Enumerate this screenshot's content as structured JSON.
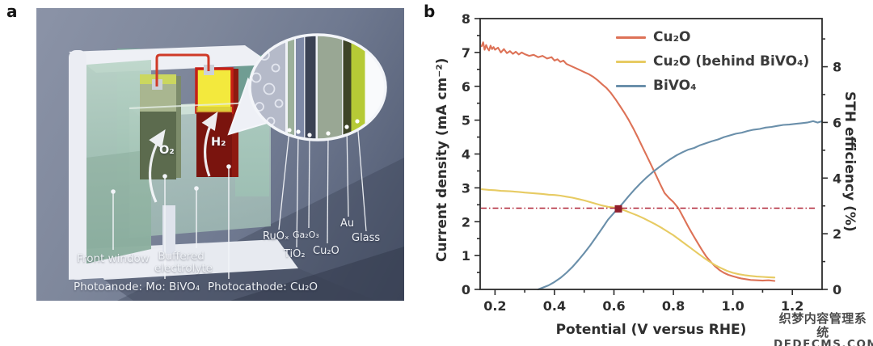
{
  "panel_a": {
    "label": "a",
    "cell_labels": {
      "front_window": "Front window",
      "buffered_line1": "Buffered",
      "buffered_line2": "electrolyte",
      "photoanode": "Photoanode: Mo: BiVO₄",
      "photocathode": "Photocathode: Cu₂O",
      "o2": "O₂",
      "h2": "H₂"
    },
    "layer_labels": [
      "RuOₓ",
      "TiO₂",
      "Ga₂O₃",
      "Cu₂O",
      "Au",
      "Glass"
    ],
    "layer_colors": [
      "#9cb09b",
      "#7e89a6",
      "#3b4254",
      "#99a794",
      "#3e4427",
      "#b6ca36"
    ]
  },
  "panel_b": {
    "label": "b"
  },
  "chart_data": {
    "type": "line",
    "xlabel": "Potential (V versus RHE)",
    "ylabel_left": "Current density (mA cm⁻²)",
    "ylabel_right": "STH efficiency (%)",
    "xlim": [
      0.15,
      1.3
    ],
    "ylim_left": [
      0,
      8
    ],
    "ylim_right": [
      0,
      9.73
    ],
    "x_major_ticks": [
      0.2,
      0.4,
      0.6,
      0.8,
      1.0,
      1.2
    ],
    "x_minor_ticks": [
      0.3,
      0.5,
      0.7,
      0.9,
      1.1
    ],
    "y_left_major_ticks": [
      0,
      1,
      2,
      3,
      4,
      5,
      6,
      7,
      8
    ],
    "y_left_minor_ticks": [
      0.5,
      1.5,
      2.5,
      3.5,
      4.5,
      5.5,
      6.5,
      7.5
    ],
    "y_right_major_ticks": [
      0,
      2,
      4,
      6,
      8
    ],
    "y_right_minor_ticks": [
      1,
      3,
      5,
      7,
      9
    ],
    "grid": false,
    "legend_position": "top-center-inside",
    "frame_color": "#2b2b2b",
    "series": [
      {
        "name": "Cu₂O",
        "color": "#dd7257",
        "points": [
          [
            0.155,
            7.18
          ],
          [
            0.16,
            7.3
          ],
          [
            0.165,
            7.08
          ],
          [
            0.17,
            7.22
          ],
          [
            0.175,
            7.12
          ],
          [
            0.18,
            7.06
          ],
          [
            0.185,
            7.2
          ],
          [
            0.19,
            7.1
          ],
          [
            0.195,
            7.16
          ],
          [
            0.2,
            7.08
          ],
          [
            0.21,
            7.14
          ],
          [
            0.22,
            7.0
          ],
          [
            0.23,
            7.1
          ],
          [
            0.24,
            6.98
          ],
          [
            0.25,
            7.04
          ],
          [
            0.26,
            6.96
          ],
          [
            0.27,
            7.02
          ],
          [
            0.28,
            6.94
          ],
          [
            0.29,
            7.0
          ],
          [
            0.3,
            6.95
          ],
          [
            0.315,
            6.9
          ],
          [
            0.33,
            6.93
          ],
          [
            0.345,
            6.86
          ],
          [
            0.36,
            6.9
          ],
          [
            0.375,
            6.82
          ],
          [
            0.39,
            6.86
          ],
          [
            0.4,
            6.76
          ],
          [
            0.41,
            6.8
          ],
          [
            0.42,
            6.72
          ],
          [
            0.43,
            6.76
          ],
          [
            0.44,
            6.66
          ],
          [
            0.455,
            6.6
          ],
          [
            0.47,
            6.54
          ],
          [
            0.485,
            6.48
          ],
          [
            0.5,
            6.42
          ],
          [
            0.515,
            6.36
          ],
          [
            0.53,
            6.28
          ],
          [
            0.545,
            6.18
          ],
          [
            0.56,
            6.06
          ],
          [
            0.575,
            5.95
          ],
          [
            0.59,
            5.8
          ],
          [
            0.605,
            5.62
          ],
          [
            0.62,
            5.42
          ],
          [
            0.635,
            5.22
          ],
          [
            0.65,
            5.0
          ],
          [
            0.665,
            4.76
          ],
          [
            0.68,
            4.5
          ],
          [
            0.695,
            4.22
          ],
          [
            0.71,
            3.95
          ],
          [
            0.725,
            3.68
          ],
          [
            0.74,
            3.4
          ],
          [
            0.755,
            3.12
          ],
          [
            0.77,
            2.85
          ],
          [
            0.785,
            2.7
          ],
          [
            0.8,
            2.58
          ],
          [
            0.815,
            2.42
          ],
          [
            0.82,
            2.35
          ],
          [
            0.835,
            2.1
          ],
          [
            0.85,
            1.85
          ],
          [
            0.865,
            1.62
          ],
          [
            0.88,
            1.4
          ],
          [
            0.895,
            1.18
          ],
          [
            0.91,
            0.98
          ],
          [
            0.925,
            0.82
          ],
          [
            0.94,
            0.68
          ],
          [
            0.955,
            0.57
          ],
          [
            0.97,
            0.49
          ],
          [
            0.985,
            0.43
          ],
          [
            1.0,
            0.39
          ],
          [
            1.015,
            0.35
          ],
          [
            1.03,
            0.32
          ],
          [
            1.045,
            0.3
          ],
          [
            1.06,
            0.28
          ],
          [
            1.08,
            0.27
          ],
          [
            1.1,
            0.26
          ],
          [
            1.12,
            0.27
          ],
          [
            1.14,
            0.25
          ]
        ]
      },
      {
        "name": "Cu₂O (behind BiVO₄)",
        "color": "#e7cb63",
        "points": [
          [
            0.155,
            2.96
          ],
          [
            0.18,
            2.94
          ],
          [
            0.2,
            2.93
          ],
          [
            0.22,
            2.91
          ],
          [
            0.25,
            2.9
          ],
          [
            0.28,
            2.88
          ],
          [
            0.3,
            2.86
          ],
          [
            0.33,
            2.84
          ],
          [
            0.36,
            2.82
          ],
          [
            0.38,
            2.8
          ],
          [
            0.4,
            2.79
          ],
          [
            0.42,
            2.77
          ],
          [
            0.44,
            2.74
          ],
          [
            0.46,
            2.71
          ],
          [
            0.48,
            2.67
          ],
          [
            0.5,
            2.63
          ],
          [
            0.52,
            2.58
          ],
          [
            0.54,
            2.53
          ],
          [
            0.56,
            2.48
          ],
          [
            0.58,
            2.44
          ],
          [
            0.6,
            2.42
          ],
          [
            0.62,
            2.38
          ],
          [
            0.64,
            2.32
          ],
          [
            0.66,
            2.25
          ],
          [
            0.68,
            2.18
          ],
          [
            0.7,
            2.1
          ],
          [
            0.72,
            2.01
          ],
          [
            0.74,
            1.92
          ],
          [
            0.76,
            1.82
          ],
          [
            0.78,
            1.71
          ],
          [
            0.8,
            1.6
          ],
          [
            0.82,
            1.47
          ],
          [
            0.84,
            1.34
          ],
          [
            0.86,
            1.21
          ],
          [
            0.88,
            1.08
          ],
          [
            0.9,
            0.95
          ],
          [
            0.92,
            0.83
          ],
          [
            0.94,
            0.72
          ],
          [
            0.96,
            0.63
          ],
          [
            0.98,
            0.55
          ],
          [
            1.0,
            0.49
          ],
          [
            1.02,
            0.45
          ],
          [
            1.04,
            0.42
          ],
          [
            1.06,
            0.4
          ],
          [
            1.08,
            0.38
          ],
          [
            1.1,
            0.37
          ],
          [
            1.12,
            0.36
          ],
          [
            1.14,
            0.35
          ]
        ]
      },
      {
        "name": "BiVO₄",
        "color": "#6a8faa",
        "points": [
          [
            0.345,
            0.0
          ],
          [
            0.36,
            0.05
          ],
          [
            0.38,
            0.12
          ],
          [
            0.4,
            0.22
          ],
          [
            0.42,
            0.34
          ],
          [
            0.44,
            0.49
          ],
          [
            0.46,
            0.66
          ],
          [
            0.48,
            0.86
          ],
          [
            0.5,
            1.07
          ],
          [
            0.52,
            1.3
          ],
          [
            0.54,
            1.55
          ],
          [
            0.56,
            1.8
          ],
          [
            0.58,
            2.06
          ],
          [
            0.6,
            2.26
          ],
          [
            0.615,
            2.4
          ],
          [
            0.63,
            2.55
          ],
          [
            0.65,
            2.76
          ],
          [
            0.67,
            2.96
          ],
          [
            0.69,
            3.14
          ],
          [
            0.71,
            3.31
          ],
          [
            0.73,
            3.46
          ],
          [
            0.75,
            3.6
          ],
          [
            0.77,
            3.73
          ],
          [
            0.79,
            3.85
          ],
          [
            0.81,
            3.96
          ],
          [
            0.83,
            4.05
          ],
          [
            0.85,
            4.13
          ],
          [
            0.87,
            4.18
          ],
          [
            0.89,
            4.26
          ],
          [
            0.91,
            4.32
          ],
          [
            0.93,
            4.38
          ],
          [
            0.95,
            4.43
          ],
          [
            0.97,
            4.5
          ],
          [
            0.99,
            4.55
          ],
          [
            1.01,
            4.6
          ],
          [
            1.03,
            4.63
          ],
          [
            1.05,
            4.68
          ],
          [
            1.07,
            4.72
          ],
          [
            1.09,
            4.74
          ],
          [
            1.11,
            4.78
          ],
          [
            1.13,
            4.8
          ],
          [
            1.15,
            4.83
          ],
          [
            1.17,
            4.86
          ],
          [
            1.19,
            4.87
          ],
          [
            1.21,
            4.89
          ],
          [
            1.23,
            4.91
          ],
          [
            1.25,
            4.93
          ],
          [
            1.27,
            4.97
          ],
          [
            1.285,
            4.93
          ],
          [
            1.3,
            4.97
          ]
        ]
      }
    ],
    "reference_line": {
      "y": 2.4,
      "color": "#b02437",
      "style": "dash-dot"
    },
    "operating_point": {
      "x": 0.615,
      "y": 2.38,
      "color": "#8f1d2c",
      "shape": "square"
    }
  },
  "watermark": {
    "line1": "织梦内容管理系统",
    "line2": "DEDECMS.COM"
  }
}
